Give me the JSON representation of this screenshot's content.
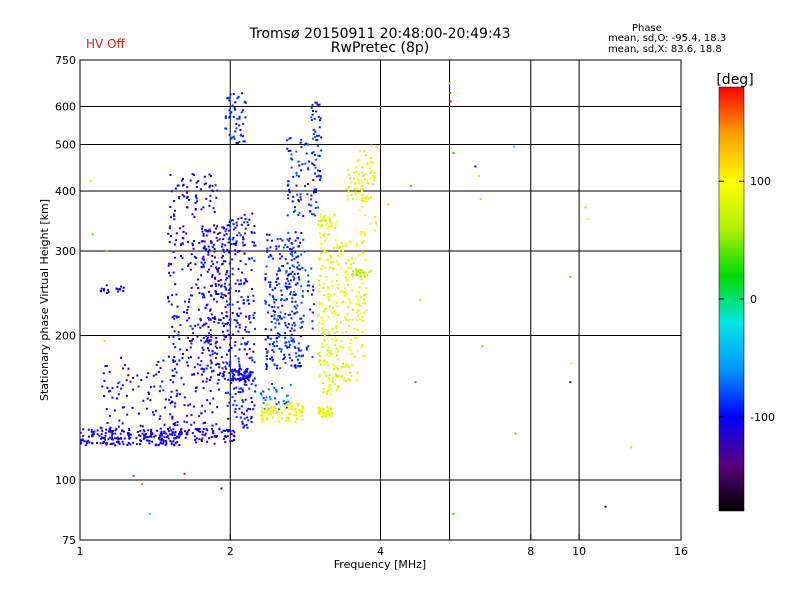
{
  "header": {
    "title": "Tromsø 20150911 20:48:00-20:49:43",
    "subtitle": "RwPretec (8p)",
    "hv_status": "HV Off",
    "hv_color": "#d42020",
    "phase_title": "Phase",
    "phase_o": "mean, sd,O: -95.4, 18.3",
    "phase_x": "mean, sd,X:  83.6, 18.8"
  },
  "chart_data": {
    "type": "scatter",
    "title": "Tromsø 20150911 20:48:00-20:49:43",
    "subtitle": "RwPretec (8p)",
    "xlabel": "Frequency [MHz]",
    "ylabel": "Stationary phase Virtual Height [km]",
    "x_scale": "log",
    "y_scale": "log",
    "xlim": [
      1,
      16
    ],
    "ylim": [
      75,
      750
    ],
    "x_ticks": [
      1,
      2,
      4,
      8,
      10,
      16
    ],
    "x_tick_labels": [
      "1",
      "2",
      "4",
      "8",
      "10",
      "16"
    ],
    "x_grid": [
      2,
      4,
      5.5,
      8,
      10
    ],
    "y_ticks": [
      75,
      100,
      200,
      300,
      400,
      500,
      600,
      750
    ],
    "y_tick_labels": [
      "75",
      "100",
      "200",
      "300",
      "400",
      "500",
      "600",
      "750"
    ],
    "y_grid": [
      100,
      200,
      300,
      400,
      500,
      600
    ],
    "grid": true,
    "colorbar": {
      "label": "[deg]",
      "range": [
        -180,
        180
      ],
      "ticks": [
        100,
        0,
        -100
      ],
      "tick_labels": [
        "100",
        "0",
        "-100"
      ],
      "colors": [
        "#000000",
        "#5a0080",
        "#0000ff",
        "#0096ff",
        "#00e6e6",
        "#00dc00",
        "#b4f000",
        "#ffff00",
        "#ffa000",
        "#ff0000"
      ]
    },
    "series": [
      {
        "clusters": [
          {
            "f": [
              1.0,
              1.6
            ],
            "h": [
              118,
              128
            ],
            "phase": -110,
            "n": 220
          },
          {
            "f": [
              1.1,
              1.6
            ],
            "h": [
              128,
              180
            ],
            "phase": -110,
            "n": 90
          },
          {
            "f": [
              1.5,
              1.9
            ],
            "h": [
              125,
              440
            ],
            "phase": -108,
            "n": 330
          },
          {
            "f": [
              1.75,
              2.0
            ],
            "h": [
              160,
              340
            ],
            "phase": -108,
            "n": 160
          },
          {
            "f": [
              1.6,
              2.05
            ],
            "h": [
              119,
              128
            ],
            "phase": -115,
            "n": 60
          },
          {
            "f": [
              1.95,
              2.25
            ],
            "h": [
              128,
              360
            ],
            "phase": -100,
            "n": 260
          },
          {
            "f": [
              2.0,
              2.2
            ],
            "h": [
              160,
              170
            ],
            "phase": -105,
            "n": 60
          },
          {
            "f": [
              1.95,
              2.15
            ],
            "h": [
              500,
              640
            ],
            "phase": -95,
            "n": 50
          },
          {
            "f": [
              2.35,
              2.8
            ],
            "h": [
              170,
              330
            ],
            "phase": -92,
            "n": 230
          },
          {
            "f": [
              2.5,
              2.95
            ],
            "h": [
              180,
              320
            ],
            "phase": -88,
            "n": 70
          },
          {
            "f": [
              2.6,
              3.0
            ],
            "h": [
              350,
              520
            ],
            "phase": -92,
            "n": 80
          },
          {
            "f": [
              2.9,
              3.05
            ],
            "h": [
              420,
              620
            ],
            "phase": -95,
            "n": 40
          },
          {
            "f": [
              1.1,
              1.25
            ],
            "h": [
              245,
              255
            ],
            "phase": -112,
            "n": 18
          },
          {
            "f": [
              2.3,
              2.65
            ],
            "h": [
              140,
              160
            ],
            "phase": -75,
            "n": 30
          }
        ]
      },
      {
        "clusters": [
          {
            "f": [
              2.3,
              2.8
            ],
            "h": [
              132,
              145
            ],
            "phase": 95,
            "n": 90
          },
          {
            "f": [
              3.0,
              3.2
            ],
            "h": [
              135,
              142
            ],
            "phase": 92,
            "n": 40
          },
          {
            "f": [
              3.0,
              3.3
            ],
            "h": [
              150,
              360
            ],
            "phase": 88,
            "n": 200
          },
          {
            "f": [
              3.3,
              3.75
            ],
            "h": [
              180,
              320
            ],
            "phase": 90,
            "n": 110
          },
          {
            "f": [
              3.4,
              3.9
            ],
            "h": [
              380,
              460
            ],
            "phase": 88,
            "n": 50
          },
          {
            "f": [
              3.5,
              3.85
            ],
            "h": [
              265,
              275
            ],
            "phase": 70,
            "n": 30
          },
          {
            "f": [
              3.6,
              3.95
            ],
            "h": [
              320,
              500
            ],
            "phase": 100,
            "n": 40
          },
          {
            "f": [
              3.2,
              3.6
            ],
            "h": [
              160,
              175
            ],
            "phase": 85,
            "n": 30
          }
        ]
      }
    ],
    "sparse_points": [
      {
        "f": 1.05,
        "h": 420,
        "phase": 110
      },
      {
        "f": 1.06,
        "h": 325,
        "phase": 40
      },
      {
        "f": 1.12,
        "h": 195,
        "phase": 120
      },
      {
        "f": 1.13,
        "h": 300,
        "phase": 140
      },
      {
        "f": 1.2,
        "h": 160,
        "phase": -60
      },
      {
        "f": 1.28,
        "h": 102,
        "phase": 170
      },
      {
        "f": 1.33,
        "h": 98,
        "phase": 160
      },
      {
        "f": 1.38,
        "h": 85,
        "phase": -20
      },
      {
        "f": 1.62,
        "h": 103,
        "phase": 175
      },
      {
        "f": 1.92,
        "h": 96,
        "phase": -130
      },
      {
        "f": 4.15,
        "h": 375,
        "phase": 120
      },
      {
        "f": 4.6,
        "h": 410,
        "phase": 150
      },
      {
        "f": 4.7,
        "h": 160,
        "phase": 160
      },
      {
        "f": 4.8,
        "h": 237,
        "phase": 70
      },
      {
        "f": 5.5,
        "h": 670,
        "phase": 130
      },
      {
        "f": 5.52,
        "h": 640,
        "phase": 160
      },
      {
        "f": 5.53,
        "h": 615,
        "phase": 175
      },
      {
        "f": 5.6,
        "h": 480,
        "phase": 20
      },
      {
        "f": 5.6,
        "h": 85,
        "phase": 30
      },
      {
        "f": 6.2,
        "h": 450,
        "phase": -110
      },
      {
        "f": 6.3,
        "h": 430,
        "phase": 110
      },
      {
        "f": 6.35,
        "h": 385,
        "phase": 120
      },
      {
        "f": 6.4,
        "h": 190,
        "phase": 140
      },
      {
        "f": 7.4,
        "h": 495,
        "phase": -20
      },
      {
        "f": 7.45,
        "h": 125,
        "phase": 40
      },
      {
        "f": 9.6,
        "h": 265,
        "phase": 40
      },
      {
        "f": 9.6,
        "h": 160,
        "phase": -140
      },
      {
        "f": 9.65,
        "h": 175,
        "phase": 110
      },
      {
        "f": 10.3,
        "h": 370,
        "phase": 130
      },
      {
        "f": 10.4,
        "h": 350,
        "phase": 90
      },
      {
        "f": 11.3,
        "h": 88,
        "phase": -160
      },
      {
        "f": 12.7,
        "h": 117,
        "phase": 120
      }
    ]
  }
}
